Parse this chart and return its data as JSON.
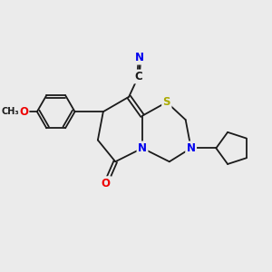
{
  "bg_color": "#ebebeb",
  "bond_color": "#1a1a1a",
  "atom_colors": {
    "N": "#0000ee",
    "O": "#ee0000",
    "S": "#aaaa00",
    "C_label": "#1a1a1a"
  },
  "font_size_atom": 8.5,
  "font_size_small": 7.0,
  "line_width": 1.3,
  "figsize": [
    3.0,
    3.0
  ],
  "dpi": 100
}
